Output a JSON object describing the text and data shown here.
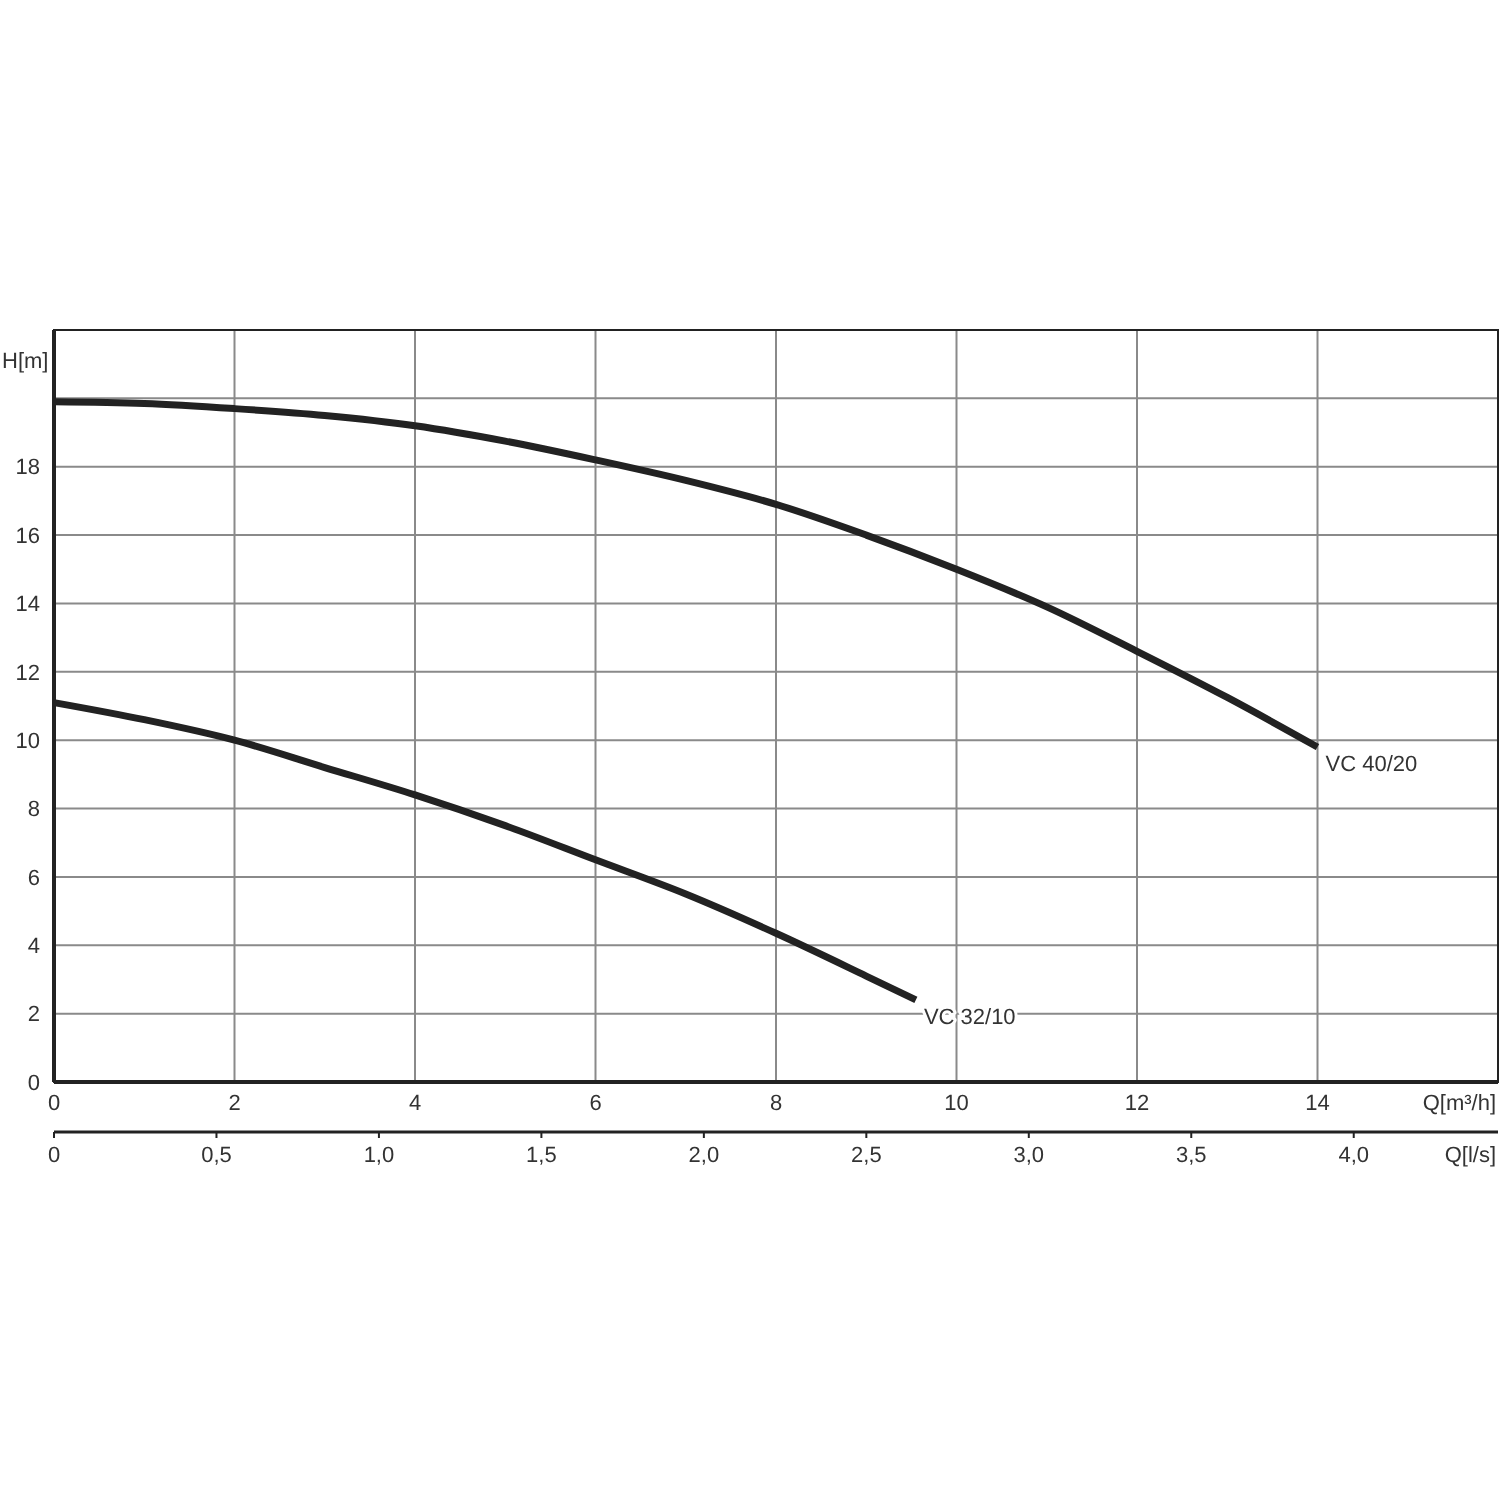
{
  "chart_data": {
    "type": "line",
    "xlabel": "Q[m³/h]",
    "ylabel": "H[m]",
    "x2label": "Q[l/s]",
    "xlim": [
      0,
      16
    ],
    "xticks": [
      0,
      2,
      4,
      6,
      8,
      10,
      12,
      14
    ],
    "ylim": [
      0,
      22
    ],
    "yticks": [
      0,
      2,
      4,
      6,
      8,
      10,
      12,
      14,
      16,
      18,
      {
        "value": 20,
        "label": null
      }
    ],
    "x2lim": [
      0,
      4.444
    ],
    "x2ticks": [
      0,
      {
        "value": 0.5,
        "label": "0,5"
      },
      {
        "value": 1,
        "label": "1,0"
      },
      {
        "value": 1.5,
        "label": "1,5"
      },
      {
        "value": 2,
        "label": "2,0"
      },
      {
        "value": 2.5,
        "label": "2,5"
      },
      {
        "value": 3,
        "label": "3,0"
      },
      {
        "value": 3.5,
        "label": "3,5"
      },
      {
        "value": 4,
        "label": "4,0"
      }
    ],
    "grid": true,
    "series": [
      {
        "name": "VC 40/20",
        "color": "#222222",
        "x": [
          0,
          1,
          2,
          3,
          4,
          5,
          6,
          7,
          8,
          9,
          10,
          11,
          12,
          13,
          14
        ],
        "values": [
          19.9,
          19.85,
          19.7,
          19.5,
          19.2,
          18.75,
          18.2,
          17.6,
          16.9,
          16.0,
          15.0,
          13.9,
          12.6,
          11.25,
          9.8
        ]
      },
      {
        "name": "VC 32/10",
        "color": "#222222",
        "x": [
          0,
          1,
          2,
          3,
          4,
          5,
          6,
          7,
          8,
          9,
          9.55
        ],
        "values": [
          11.1,
          10.6,
          10.0,
          9.2,
          8.4,
          7.5,
          6.5,
          5.5,
          4.35,
          3.1,
          2.4
        ]
      }
    ]
  }
}
